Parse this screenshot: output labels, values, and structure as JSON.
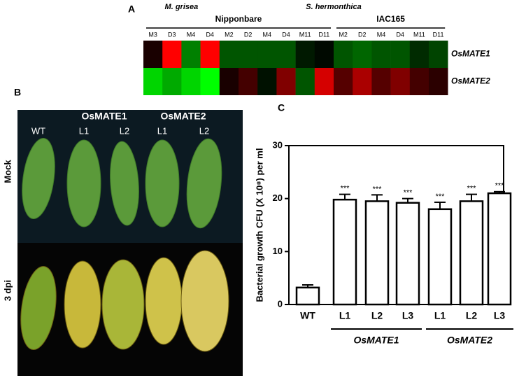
{
  "chart_data": [
    {
      "type": "heatmap",
      "label": "A",
      "column_pathogen": [
        "M. grisea",
        "M. grisea",
        "M. grisea",
        "M. grisea",
        "S. hermonthica",
        "S. hermonthica",
        "S. hermonthica",
        "S. hermonthica",
        "S. hermonthica",
        "S. hermonthica",
        "S. hermonthica",
        "S. hermonthica",
        "S. hermonthica",
        "S. hermonthica",
        "S. hermonthica",
        "S. hermonthica"
      ],
      "column_cultivar": [
        "Nipponbare",
        "Nipponbare",
        "Nipponbare",
        "Nipponbare",
        "Nipponbare",
        "Nipponbare",
        "Nipponbare",
        "Nipponbare",
        "Nipponbare",
        "Nipponbare",
        "IAC165",
        "IAC165",
        "IAC165",
        "IAC165",
        "IAC165",
        "IAC165"
      ],
      "columns": [
        "M3",
        "D3",
        "M4",
        "D4",
        "M2",
        "D2",
        "M4",
        "D4",
        "M11",
        "D11",
        "M2",
        "D2",
        "M4",
        "D4",
        "M11",
        "D11"
      ],
      "rows": [
        "OsMATE1",
        "OsMATE2"
      ],
      "values": [
        [
          0.3,
          3,
          -1.5,
          3,
          -1,
          -1,
          -1,
          -1,
          -0.3,
          -0.1,
          -1,
          -1.2,
          -1,
          -1,
          -0.5,
          -0.8
        ],
        [
          -2.5,
          -2,
          -2.5,
          -3,
          0.3,
          0.8,
          -0.2,
          1.5,
          -1,
          2.5,
          1,
          2,
          1,
          1.5,
          0.8,
          0.5
        ]
      ],
      "vlim": [
        -3,
        3
      ],
      "colormap": {
        "low": "#00ff00",
        "mid": "#000000",
        "high": "#ff0000"
      }
    },
    {
      "type": "bar",
      "label": "C",
      "y_label": "Bacterial growth CFU (X 10⁸) per ml",
      "categories": [
        "WT",
        "L1",
        "L2",
        "L3",
        "L1",
        "L2",
        "L3"
      ],
      "category_groups": [
        null,
        "OsMATE1",
        "OsMATE1",
        "OsMATE1",
        "OsMATE2",
        "OsMATE2",
        "OsMATE2"
      ],
      "values": [
        3.2,
        19.8,
        19.5,
        19.2,
        18,
        19.5,
        21
      ],
      "errors": [
        0.5,
        1,
        1.2,
        0.8,
        1.3,
        1.3,
        0.3
      ],
      "significance": [
        null,
        "***",
        "***",
        "***",
        "***",
        "***",
        "***"
      ],
      "color": "#ffffff",
      "ylim": [
        0,
        30
      ],
      "yticks": [
        0,
        10,
        20,
        30
      ]
    }
  ],
  "photo": {
    "label": "B",
    "column_labels": [
      "WT",
      "L1",
      "L2",
      "L1",
      "L2"
    ],
    "column_groups": [
      null,
      "OsMATE1",
      "OsMATE1",
      "OsMATE2",
      "OsMATE2"
    ],
    "row_labels": [
      "Mock",
      "3 dpi"
    ]
  }
}
